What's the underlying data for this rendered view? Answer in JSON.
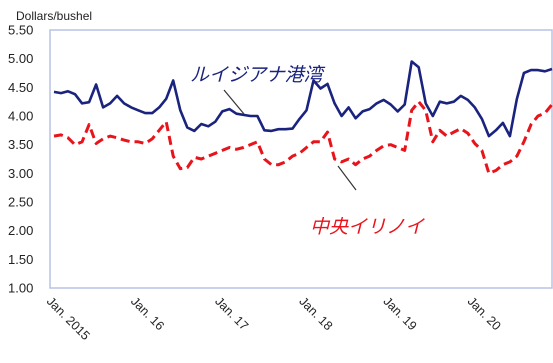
{
  "chart_data": {
    "type": "line",
    "ylabel": "Dollars/bushel",
    "ylim": [
      1.0,
      5.5
    ],
    "yticks": [
      "1.00",
      "1.50",
      "2.00",
      "2.50",
      "3.00",
      "3.50",
      "4.00",
      "4.50",
      "5.00",
      "5.50"
    ],
    "x_range": [
      "2015-01",
      "2020-12"
    ],
    "xtick_labels": [
      "Jan. 2015",
      "Jan. 16",
      "Jan. 17",
      "Jan. 18",
      "Jan. 19",
      "Jan. 20"
    ],
    "grid": false,
    "series": [
      {
        "name": "ルイジアナ港湾",
        "color": "#1a237e",
        "style": "solid",
        "x": [
          "2015-01",
          "2015-02",
          "2015-03",
          "2015-04",
          "2015-05",
          "2015-06",
          "2015-07",
          "2015-08",
          "2015-09",
          "2015-10",
          "2015-11",
          "2015-12",
          "2016-01",
          "2016-02",
          "2016-03",
          "2016-04",
          "2016-05",
          "2016-06",
          "2016-07",
          "2016-08",
          "2016-09",
          "2016-10",
          "2016-11",
          "2016-12",
          "2017-01",
          "2017-02",
          "2017-03",
          "2017-04",
          "2017-05",
          "2017-06",
          "2017-07",
          "2017-08",
          "2017-09",
          "2017-10",
          "2017-11",
          "2017-12",
          "2018-01",
          "2018-02",
          "2018-03",
          "2018-04",
          "2018-05",
          "2018-06",
          "2018-07",
          "2018-08",
          "2018-09",
          "2018-10",
          "2018-11",
          "2018-12",
          "2019-01",
          "2019-02",
          "2019-03",
          "2019-04",
          "2019-05",
          "2019-06",
          "2019-07",
          "2019-08",
          "2019-09",
          "2019-10",
          "2019-11",
          "2019-12",
          "2020-01",
          "2020-02",
          "2020-03",
          "2020-04",
          "2020-05",
          "2020-06",
          "2020-07",
          "2020-08",
          "2020-09",
          "2020-10",
          "2020-11",
          "2020-12"
        ],
        "y": [
          4.42,
          4.4,
          4.43,
          4.38,
          4.22,
          4.24,
          4.55,
          4.15,
          4.22,
          4.35,
          4.22,
          4.15,
          4.1,
          4.05,
          4.05,
          4.15,
          4.3,
          4.62,
          4.1,
          3.8,
          3.74,
          3.86,
          3.82,
          3.9,
          4.08,
          4.12,
          4.04,
          4.02,
          4.0,
          4.0,
          3.75,
          3.74,
          3.77,
          3.77,
          3.78,
          3.95,
          4.1,
          4.62,
          4.48,
          4.56,
          4.22,
          4.0,
          4.15,
          3.96,
          4.08,
          4.12,
          4.22,
          4.28,
          4.2,
          4.08,
          4.2,
          4.95,
          4.85,
          4.22,
          4.0,
          4.25,
          4.22,
          4.25,
          4.35,
          4.28,
          4.15,
          3.95,
          3.65,
          3.75,
          3.88,
          3.65,
          4.3,
          4.75,
          4.8,
          4.8,
          4.78,
          4.82
        ]
      },
      {
        "name": "中央イリノイ",
        "color": "#e8131b",
        "style": "dashed",
        "x": [
          "2015-01",
          "2015-02",
          "2015-03",
          "2015-04",
          "2015-05",
          "2015-06",
          "2015-07",
          "2015-08",
          "2015-09",
          "2015-10",
          "2015-11",
          "2015-12",
          "2016-01",
          "2016-02",
          "2016-03",
          "2016-04",
          "2016-05",
          "2016-06",
          "2016-07",
          "2016-08",
          "2016-09",
          "2016-10",
          "2016-11",
          "2016-12",
          "2017-01",
          "2017-02",
          "2017-03",
          "2017-04",
          "2017-05",
          "2017-06",
          "2017-07",
          "2017-08",
          "2017-09",
          "2017-10",
          "2017-11",
          "2017-12",
          "2018-01",
          "2018-02",
          "2018-03",
          "2018-04",
          "2018-05",
          "2018-06",
          "2018-07",
          "2018-08",
          "2018-09",
          "2018-10",
          "2018-11",
          "2018-12",
          "2019-01",
          "2019-02",
          "2019-03",
          "2019-04",
          "2019-05",
          "2019-06",
          "2019-07",
          "2019-08",
          "2019-09",
          "2019-10",
          "2019-11",
          "2019-12",
          "2020-01",
          "2020-02",
          "2020-03",
          "2020-04",
          "2020-05",
          "2020-06",
          "2020-07",
          "2020-08",
          "2020-09",
          "2020-10",
          "2020-11",
          "2020-12"
        ],
        "y": [
          3.65,
          3.67,
          3.62,
          3.5,
          3.55,
          3.85,
          3.52,
          3.6,
          3.65,
          3.62,
          3.58,
          3.55,
          3.55,
          3.52,
          3.6,
          3.75,
          3.9,
          3.3,
          3.08,
          3.1,
          3.28,
          3.25,
          3.3,
          3.35,
          3.4,
          3.45,
          3.42,
          3.45,
          3.5,
          3.55,
          3.25,
          3.15,
          3.15,
          3.2,
          3.3,
          3.35,
          3.45,
          3.55,
          3.55,
          3.72,
          3.25,
          3.2,
          3.25,
          3.15,
          3.25,
          3.3,
          3.4,
          3.48,
          3.5,
          3.45,
          3.4,
          4.1,
          4.25,
          4.1,
          3.55,
          3.75,
          3.65,
          3.72,
          3.78,
          3.7,
          3.52,
          3.4,
          3.0,
          3.05,
          3.15,
          3.2,
          3.3,
          3.55,
          3.85,
          4.0,
          4.05,
          4.2
        ]
      }
    ],
    "annotations": [
      {
        "text": "ルイジアナ港湾",
        "series": "ルイジアナ港湾"
      },
      {
        "text": "中央イリノイ",
        "series": "中央イリノイ"
      }
    ]
  }
}
